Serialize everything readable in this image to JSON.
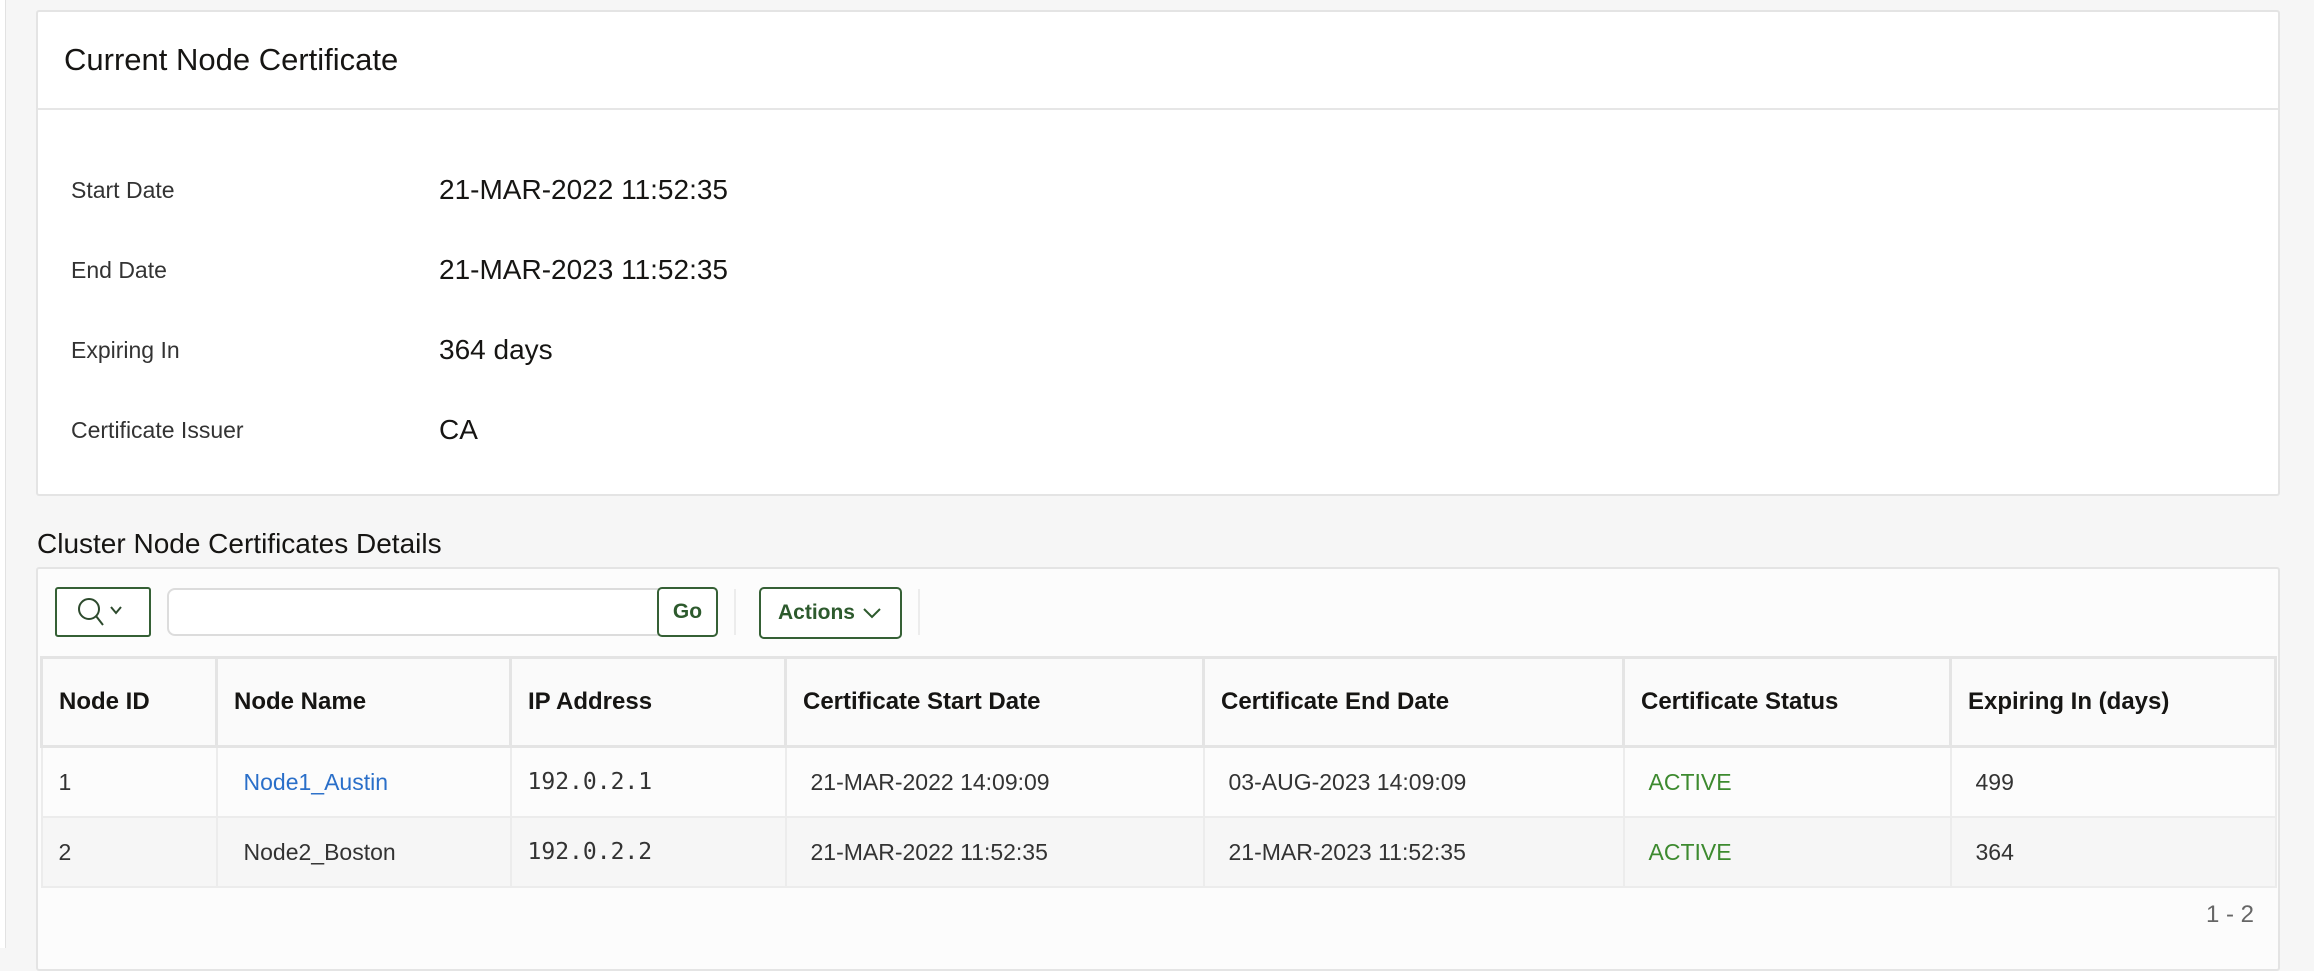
{
  "current_cert": {
    "title": "Current Node Certificate",
    "fields": [
      {
        "label": "Start Date",
        "value": "21-MAR-2022 11:52:35"
      },
      {
        "label": "End Date",
        "value": "21-MAR-2023 11:52:35"
      },
      {
        "label": "Expiring In",
        "value": "364 days"
      },
      {
        "label": "Certificate Issuer",
        "value": "CA"
      }
    ]
  },
  "cluster": {
    "title": "Cluster Node Certificates Details",
    "toolbar": {
      "search_value": "",
      "go_label": "Go",
      "actions_label": "Actions",
      "search_icon": "search-icon"
    },
    "columns": [
      "Node ID",
      "Node Name",
      "IP Address",
      "Certificate Start Date",
      "Certificate End Date",
      "Certificate Status",
      "Expiring In (days)"
    ],
    "rows": [
      [
        "1",
        "Node1_Austin",
        "192.0.2.1",
        "21-MAR-2022 14:09:09",
        "03-AUG-2023 14:09:09",
        "ACTIVE",
        "499"
      ],
      [
        "2",
        "Node2_Boston",
        "192.0.2.2",
        "21-MAR-2022 11:52:35",
        "21-MAR-2023 11:52:35",
        "ACTIVE",
        "364"
      ]
    ],
    "pagination": "1 - 2",
    "colors": {
      "status_active": "#3d8a2f",
      "link": "#2a6fc9",
      "button": "#2d5a2d"
    }
  }
}
